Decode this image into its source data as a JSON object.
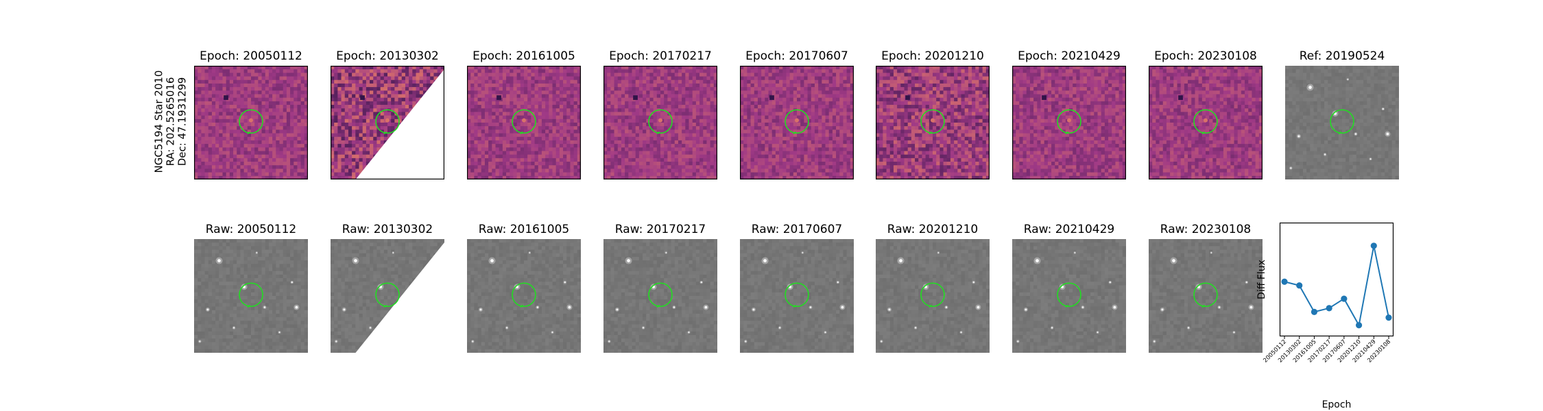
{
  "star": {
    "name": "NGC5194 Star 2010",
    "ra": "RA: 202.5265016",
    "dec": "Dec: 47.1931299"
  },
  "top_row": [
    {
      "title": "Epoch: 20050112",
      "kind": "diff",
      "missing_corner": false
    },
    {
      "title": "Epoch: 20130302",
      "kind": "diff",
      "missing_corner": true
    },
    {
      "title": "Epoch: 20161005",
      "kind": "diff",
      "missing_corner": false
    },
    {
      "title": "Epoch: 20170217",
      "kind": "diff",
      "missing_corner": false
    },
    {
      "title": "Epoch: 20170607",
      "kind": "diff",
      "missing_corner": false
    },
    {
      "title": "Epoch: 20201210",
      "kind": "diff",
      "missing_corner": false
    },
    {
      "title": "Epoch: 20210429",
      "kind": "diff",
      "missing_corner": false
    },
    {
      "title": "Epoch: 20230108",
      "kind": "diff",
      "missing_corner": false
    },
    {
      "title": "Ref: 20190524",
      "kind": "ref",
      "missing_corner": false
    }
  ],
  "bottom_row": [
    {
      "title": "Raw: 20050112",
      "missing_corner": false
    },
    {
      "title": "Raw: 20130302",
      "missing_corner": true
    },
    {
      "title": "Raw: 20161005",
      "missing_corner": false
    },
    {
      "title": "Raw: 20170217",
      "missing_corner": false
    },
    {
      "title": "Raw: 20170607",
      "missing_corner": false
    },
    {
      "title": "Raw: 20201210",
      "missing_corner": false
    },
    {
      "title": "Raw: 20210429",
      "missing_corner": false
    },
    {
      "title": "Raw: 20230108",
      "missing_corner": false
    }
  ],
  "colors": {
    "circle": "#22dd22",
    "diff_low": "#2b1245",
    "diff_mid": "#a03a86",
    "diff_high": "#f28a5d",
    "raw_background": "#7a7a7a",
    "line": "#1f77b4"
  },
  "chart_data": {
    "type": "line",
    "title": "",
    "xlabel": "Epoch",
    "ylabel": "Diff Flux",
    "categories": [
      "20050112",
      "20130302",
      "20161005",
      "20170217",
      "20170607",
      "20201210",
      "20210429",
      "20230108"
    ],
    "values": [
      0.52,
      0.48,
      0.2,
      0.24,
      0.34,
      0.06,
      0.9,
      0.14
    ],
    "ylim": [
      0,
      1
    ],
    "y_ticks_shown": false,
    "grid": false,
    "legend": "none"
  }
}
